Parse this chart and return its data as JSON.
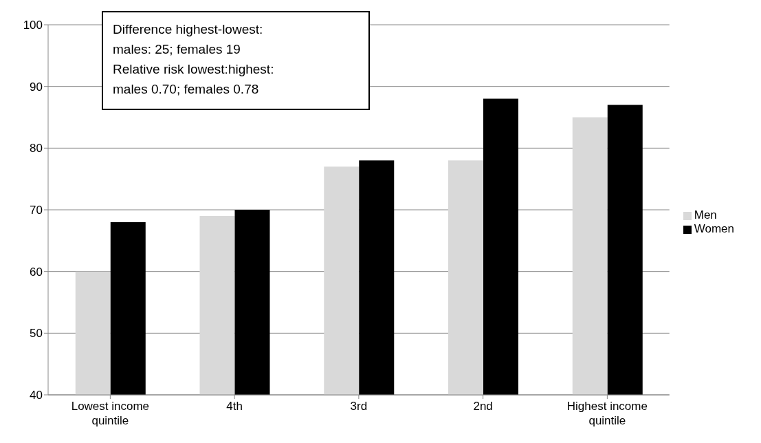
{
  "chart_data": {
    "type": "bar",
    "categories": [
      "Lowest income quintile",
      "4th",
      "3rd",
      "2nd",
      "Highest income quintile"
    ],
    "series": [
      {
        "name": "Men",
        "color": "#d9d9d9",
        "values": [
          60,
          69,
          77,
          78,
          85
        ]
      },
      {
        "name": "Women",
        "color": "#000000",
        "values": [
          68,
          70,
          78,
          88,
          87
        ]
      }
    ],
    "ylim": [
      40,
      100
    ],
    "yticks": [
      40,
      50,
      60,
      70,
      80,
      90,
      100
    ],
    "grid": "y",
    "legend": "right",
    "annotations": [
      "Difference highest-lowest:",
      "males: 25; females 19",
      "Relative risk  lowest:highest:",
      "males 0.70; females  0.78"
    ]
  }
}
